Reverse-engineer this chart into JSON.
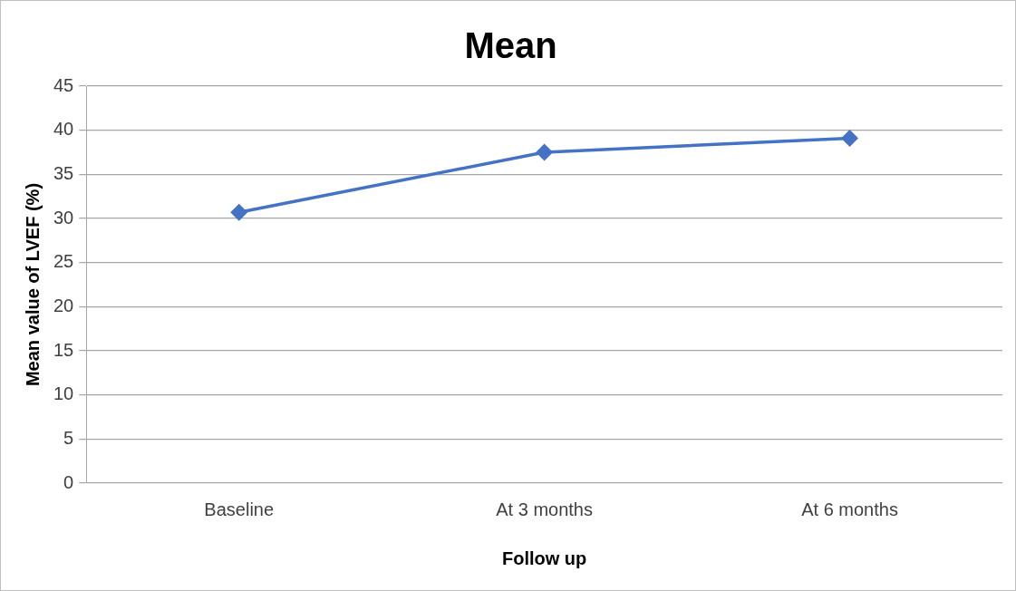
{
  "chart_data": {
    "type": "line",
    "title": "Mean",
    "xlabel": "Follow up",
    "ylabel": "Mean value of LVEF (%)",
    "categories": [
      "Baseline",
      "At 3 months",
      "At 6 months"
    ],
    "series": [
      {
        "color": "#4472c4",
        "values": [
          30.7,
          37.5,
          39.1
        ]
      }
    ],
    "ylim": [
      0,
      45
    ],
    "yticks": [
      0,
      5,
      10,
      15,
      20,
      25,
      30,
      35,
      40,
      45
    ],
    "grid": "y",
    "legend": false,
    "marker": "diamond",
    "line_style": "solid"
  }
}
